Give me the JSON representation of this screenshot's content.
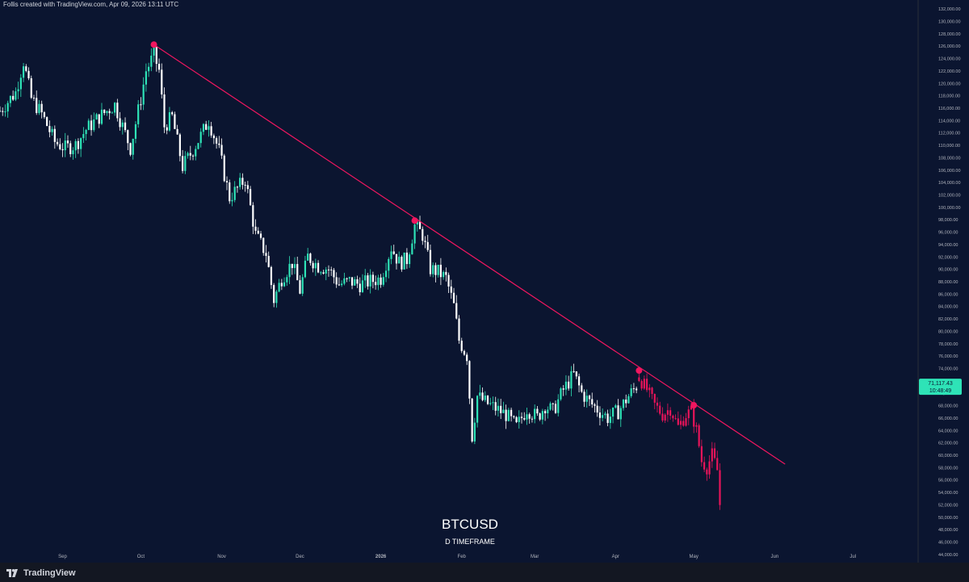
{
  "header": {
    "credit": "Follis created with TradingView.com, Apr 09, 2026 13:11 UTC"
  },
  "footer": {
    "brand": "TradingView",
    "logo_icon": "tradingview-logo-icon"
  },
  "colors": {
    "background": "#0b1530",
    "up": "#2ee3b7",
    "down": "#ffffff",
    "projection": "#e8145a",
    "trendline": "#f0165f",
    "price_label_bg": "#2ee3b7",
    "axis_text": "#b2b5be"
  },
  "chart_data": {
    "type": "candlestick",
    "title": "BTCUSD",
    "subtitle": "D TIMEFRAME",
    "ylim": [
      43000,
      133000
    ],
    "yticks": [
      44000,
      46000,
      48000,
      50000,
      52000,
      54000,
      56000,
      58000,
      60000,
      62000,
      64000,
      66000,
      68000,
      70000,
      72000,
      74000,
      76000,
      78000,
      80000,
      82000,
      84000,
      86000,
      88000,
      90000,
      92000,
      94000,
      96000,
      98000,
      100000,
      102000,
      104000,
      106000,
      108000,
      110000,
      112000,
      114000,
      116000,
      118000,
      120000,
      122000,
      124000,
      126000,
      128000,
      130000,
      132000
    ],
    "ytick_labels": [
      "44,000.00",
      "46,000.00",
      "48,000.00",
      "50,000.00",
      "52,000.00",
      "54,000.00",
      "56,000.00",
      "58,000.00",
      "60,000.00",
      "62,000.00",
      "64,000.00",
      "66,000.00",
      "68,000.00",
      "70,000.00",
      "72,000.00",
      "74,000.00",
      "76,000.00",
      "78,000.00",
      "80,000.00",
      "82,000.00",
      "84,000.00",
      "86,000.00",
      "88,000.00",
      "90,000.00",
      "92,000.00",
      "94,000.00",
      "96,000.00",
      "98,000.00",
      "100,000.00",
      "102,000.00",
      "104,000.00",
      "106,000.00",
      "108,000.00",
      "110,000.00",
      "112,000.00",
      "114,000.00",
      "116,000.00",
      "118,000.00",
      "120,000.00",
      "122,000.00",
      "124,000.00",
      "126,000.00",
      "128,000.00",
      "130,000.00",
      "132,000.00"
    ],
    "xaxis": {
      "start": "2025-08-08",
      "end": "2026-07-26",
      "ticks": [
        {
          "label": "Sep",
          "date": "2025-09-01",
          "bold": false
        },
        {
          "label": "Oct",
          "date": "2025-10-01",
          "bold": false
        },
        {
          "label": "Nov",
          "date": "2025-11-01",
          "bold": false
        },
        {
          "label": "Dec",
          "date": "2025-12-01",
          "bold": false
        },
        {
          "label": "2026",
          "date": "2026-01-01",
          "bold": true
        },
        {
          "label": "Feb",
          "date": "2026-02-01",
          "bold": false
        },
        {
          "label": "Mar",
          "date": "2026-03-01",
          "bold": false
        },
        {
          "label": "Apr",
          "date": "2026-04-01",
          "bold": false
        },
        {
          "label": "May",
          "date": "2026-05-01",
          "bold": false
        },
        {
          "label": "Jun",
          "date": "2026-06-01",
          "bold": false
        },
        {
          "label": "Jul",
          "date": "2026-07-01",
          "bold": false
        }
      ]
    },
    "current_price": {
      "value": 71117.43,
      "label": "71,117.43",
      "countdown": "10:48:49"
    },
    "closes": [
      {
        "date": "2025-08-08",
        "close": 115500
      },
      {
        "date": "2025-08-14",
        "close": 118500
      },
      {
        "date": "2025-08-17",
        "close": 123500
      },
      {
        "date": "2025-08-20",
        "close": 117500
      },
      {
        "date": "2025-08-24",
        "close": 115000
      },
      {
        "date": "2025-08-29",
        "close": 110500
      },
      {
        "date": "2025-09-02",
        "close": 109500
      },
      {
        "date": "2025-09-06",
        "close": 110000
      },
      {
        "date": "2025-09-10",
        "close": 112500
      },
      {
        "date": "2025-09-15",
        "close": 114500
      },
      {
        "date": "2025-09-21",
        "close": 116500
      },
      {
        "date": "2025-09-24",
        "close": 113000
      },
      {
        "date": "2025-09-27",
        "close": 109500
      },
      {
        "date": "2025-10-01",
        "close": 117500
      },
      {
        "date": "2025-10-03",
        "close": 122000
      },
      {
        "date": "2025-10-06",
        "close": 124500
      },
      {
        "date": "2025-10-08",
        "close": 122000
      },
      {
        "date": "2025-10-10",
        "close": 113000
      },
      {
        "date": "2025-10-13",
        "close": 114500
      },
      {
        "date": "2025-10-17",
        "close": 106500
      },
      {
        "date": "2025-10-20",
        "close": 108500
      },
      {
        "date": "2025-10-24",
        "close": 111500
      },
      {
        "date": "2025-10-27",
        "close": 114000
      },
      {
        "date": "2025-10-31",
        "close": 109000
      },
      {
        "date": "2025-11-04",
        "close": 101500
      },
      {
        "date": "2025-11-07",
        "close": 103000
      },
      {
        "date": "2025-11-10",
        "close": 104500
      },
      {
        "date": "2025-11-14",
        "close": 95500
      },
      {
        "date": "2025-11-18",
        "close": 92500
      },
      {
        "date": "2025-11-21",
        "close": 85000
      },
      {
        "date": "2025-11-24",
        "close": 88500
      },
      {
        "date": "2025-11-28",
        "close": 91000
      },
      {
        "date": "2025-12-01",
        "close": 86500
      },
      {
        "date": "2025-12-04",
        "close": 92000
      },
      {
        "date": "2025-12-08",
        "close": 90500
      },
      {
        "date": "2025-12-12",
        "close": 90000
      },
      {
        "date": "2025-12-16",
        "close": 87500
      },
      {
        "date": "2025-12-20",
        "close": 88000
      },
      {
        "date": "2025-12-24",
        "close": 87500
      },
      {
        "date": "2025-12-28",
        "close": 88000
      },
      {
        "date": "2026-01-01",
        "close": 88500
      },
      {
        "date": "2026-01-05",
        "close": 93500
      },
      {
        "date": "2026-01-08",
        "close": 91000
      },
      {
        "date": "2026-01-11",
        "close": 91500
      },
      {
        "date": "2026-01-14",
        "close": 97000
      },
      {
        "date": "2026-01-17",
        "close": 95500
      },
      {
        "date": "2026-01-20",
        "close": 90000
      },
      {
        "date": "2026-01-23",
        "close": 89500
      },
      {
        "date": "2026-01-26",
        "close": 88500
      },
      {
        "date": "2026-01-29",
        "close": 84000
      },
      {
        "date": "2026-01-31",
        "close": 78500
      },
      {
        "date": "2026-02-03",
        "close": 76000
      },
      {
        "date": "2026-02-05",
        "close": 63000
      },
      {
        "date": "2026-02-07",
        "close": 69500
      },
      {
        "date": "2026-02-10",
        "close": 68500
      },
      {
        "date": "2026-02-14",
        "close": 67500
      },
      {
        "date": "2026-02-18",
        "close": 66500
      },
      {
        "date": "2026-02-22",
        "close": 64500
      },
      {
        "date": "2026-02-26",
        "close": 67500
      },
      {
        "date": "2026-03-02",
        "close": 66000
      },
      {
        "date": "2026-03-05",
        "close": 68000
      },
      {
        "date": "2026-03-08",
        "close": 67000
      },
      {
        "date": "2026-03-12",
        "close": 70500
      },
      {
        "date": "2026-03-16",
        "close": 73000
      },
      {
        "date": "2026-03-19",
        "close": 70000
      },
      {
        "date": "2026-03-22",
        "close": 68500
      },
      {
        "date": "2026-03-26",
        "close": 67000
      },
      {
        "date": "2026-03-29",
        "close": 66000
      },
      {
        "date": "2026-04-02",
        "close": 67000
      },
      {
        "date": "2026-04-06",
        "close": 69500
      },
      {
        "date": "2026-04-09",
        "close": 71117
      }
    ],
    "projection": [
      {
        "date": "2026-04-10",
        "close": 72500
      },
      {
        "date": "2026-04-13",
        "close": 70500
      },
      {
        "date": "2026-04-16",
        "close": 68000
      },
      {
        "date": "2026-04-19",
        "close": 66500
      },
      {
        "date": "2026-04-22",
        "close": 67500
      },
      {
        "date": "2026-04-25",
        "close": 64500
      },
      {
        "date": "2026-04-28",
        "close": 66500
      },
      {
        "date": "2026-04-30",
        "close": 67000
      },
      {
        "date": "2026-05-02",
        "close": 64000
      },
      {
        "date": "2026-05-04",
        "close": 59000
      },
      {
        "date": "2026-05-06",
        "close": 58000
      },
      {
        "date": "2026-05-08",
        "close": 60000
      },
      {
        "date": "2026-05-10",
        "close": 57500
      },
      {
        "date": "2026-05-11",
        "close": 52000
      }
    ],
    "trendline": {
      "start": {
        "date": "2025-10-06",
        "value": 126200
      },
      "end": {
        "date": "2026-06-05",
        "value": 58500
      }
    },
    "touch_points": [
      {
        "date": "2025-10-06",
        "value": 126200
      },
      {
        "date": "2026-01-14",
        "value": 97800
      },
      {
        "date": "2026-04-10",
        "value": 73600
      },
      {
        "date": "2026-05-01",
        "value": 68000
      }
    ]
  }
}
